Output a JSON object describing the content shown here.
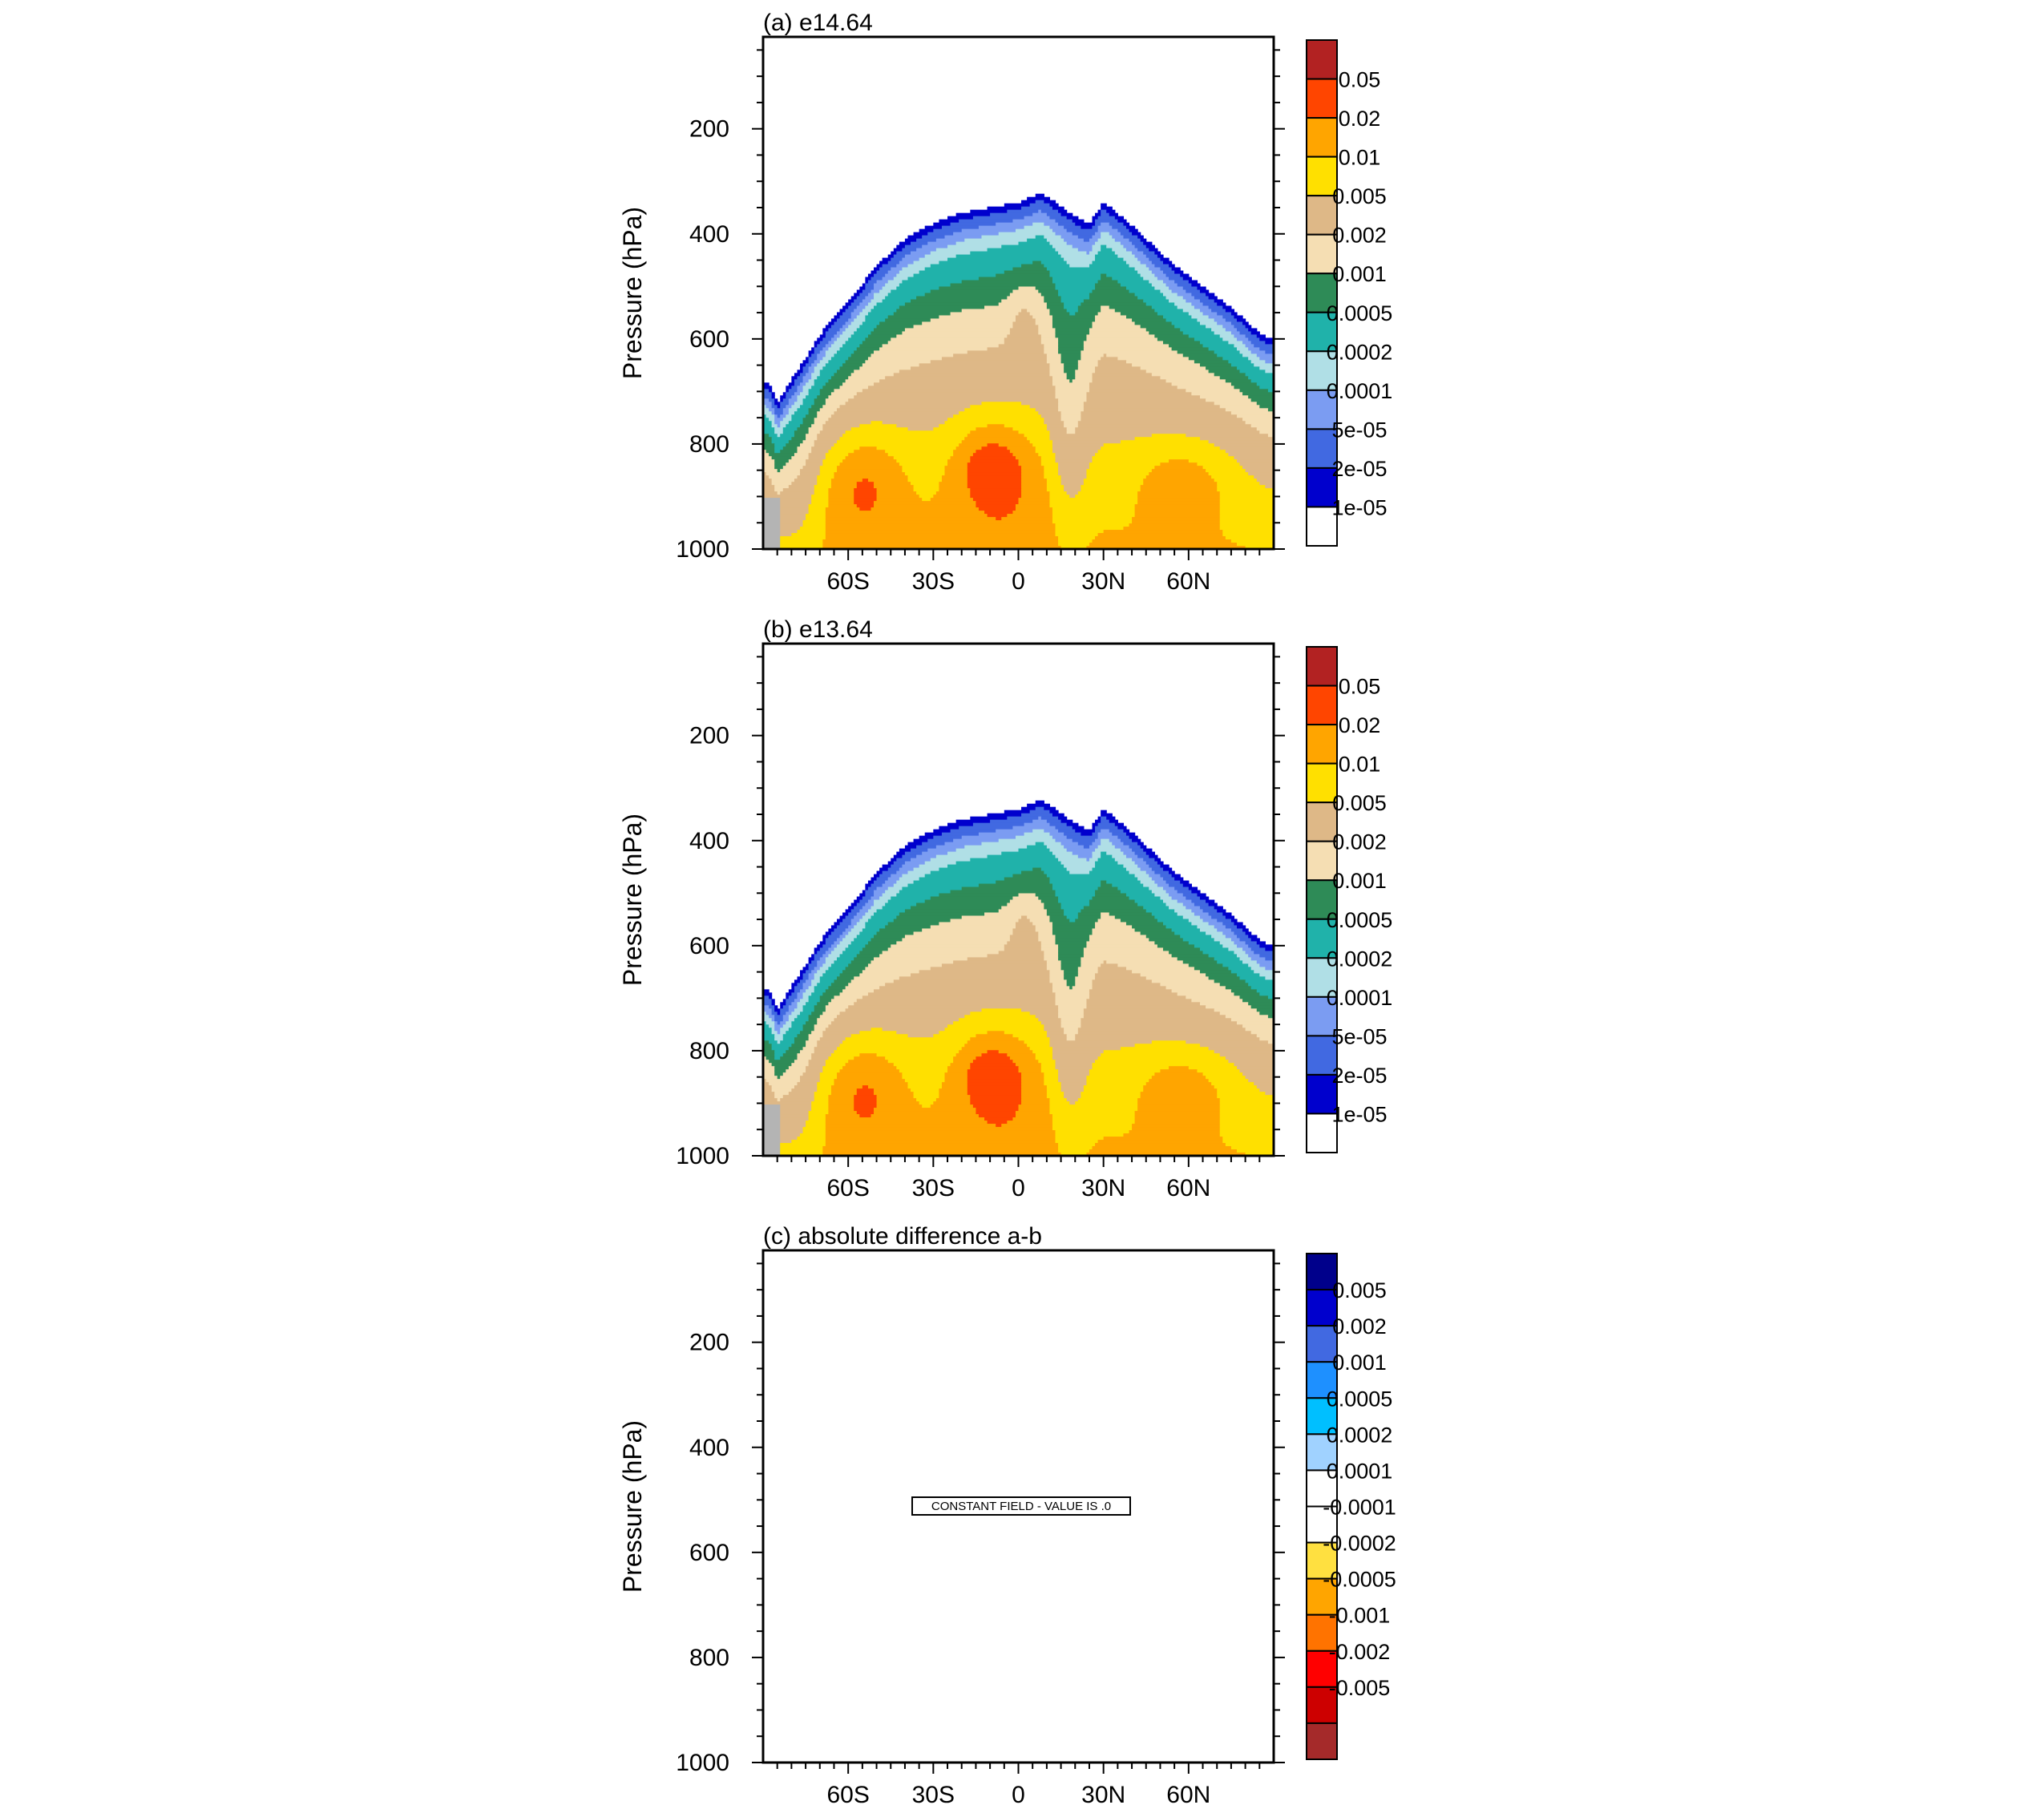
{
  "chart_data": [
    {
      "type": "contour",
      "title": "(a) e14.64",
      "xlabel": "",
      "ylabel": "Pressure (hPa)",
      "x_categories": [
        "60S",
        "30S",
        "0",
        "30N",
        "60N"
      ],
      "x_values": [
        -60,
        -30,
        0,
        30,
        60
      ],
      "xlim": [
        -90,
        90
      ],
      "y_ticks": [
        "200",
        "400",
        "600",
        "800",
        "1000"
      ],
      "y_values": [
        200,
        400,
        600,
        800,
        1000
      ],
      "ylim": [
        1000,
        25
      ],
      "levels": [
        "1e-05",
        "2e-05",
        "5e-05",
        "0.0001",
        "0.0002",
        "0.0005",
        "0.001",
        "0.002",
        "0.005",
        "0.01",
        "0.02",
        "0.05"
      ],
      "colors": [
        "#ffffff",
        "#0000cd",
        "#4169e1",
        "#7b9cf2",
        "#b0dfe6",
        "#20b2aa",
        "#2e8b57",
        "#f5deb3",
        "#deb887",
        "#ffe000",
        "#ffa500",
        "#ff4500",
        "#b22222"
      ],
      "field_top_pressure": [
        [
          -89,
          680
        ],
        [
          -87,
          690
        ],
        [
          -85,
          720
        ],
        [
          -80,
          670
        ],
        [
          -70,
          590
        ],
        [
          -60,
          530
        ],
        [
          -50,
          460
        ],
        [
          -40,
          410
        ],
        [
          -30,
          380
        ],
        [
          -20,
          360
        ],
        [
          -10,
          350
        ],
        [
          0,
          340
        ],
        [
          8,
          322
        ],
        [
          18,
          355
        ],
        [
          25,
          380
        ],
        [
          30,
          340
        ],
        [
          37,
          370
        ],
        [
          45,
          410
        ],
        [
          55,
          460
        ],
        [
          65,
          500
        ],
        [
          75,
          540
        ],
        [
          85,
          590
        ],
        [
          89,
          600
        ]
      ],
      "maxima": [
        {
          "lat": -55,
          "p": 880,
          "approx_value": 0.02
        },
        {
          "lat": -10,
          "p": 840,
          "approx_value": 0.02
        },
        {
          "lat": 58,
          "p": 870,
          "approx_value": 0.02
        }
      ]
    },
    {
      "type": "contour",
      "title": "(b) e13.64",
      "xlabel": "",
      "ylabel": "Pressure (hPa)",
      "x_categories": [
        "60S",
        "30S",
        "0",
        "30N",
        "60N"
      ],
      "x_values": [
        -60,
        -30,
        0,
        30,
        60
      ],
      "xlim": [
        -90,
        90
      ],
      "y_ticks": [
        "200",
        "400",
        "600",
        "800",
        "1000"
      ],
      "y_values": [
        200,
        400,
        600,
        800,
        1000
      ],
      "ylim": [
        1000,
        25
      ],
      "levels": [
        "1e-05",
        "2e-05",
        "5e-05",
        "0.0001",
        "0.0002",
        "0.0005",
        "0.001",
        "0.002",
        "0.005",
        "0.01",
        "0.02",
        "0.05"
      ],
      "colors": [
        "#ffffff",
        "#0000cd",
        "#4169e1",
        "#7b9cf2",
        "#b0dfe6",
        "#20b2aa",
        "#2e8b57",
        "#f5deb3",
        "#deb887",
        "#ffe000",
        "#ffa500",
        "#ff4500",
        "#b22222"
      ],
      "field_top_pressure": [
        [
          -89,
          680
        ],
        [
          -87,
          690
        ],
        [
          -85,
          720
        ],
        [
          -80,
          670
        ],
        [
          -70,
          590
        ],
        [
          -60,
          530
        ],
        [
          -50,
          460
        ],
        [
          -40,
          410
        ],
        [
          -30,
          380
        ],
        [
          -20,
          360
        ],
        [
          -10,
          350
        ],
        [
          0,
          340
        ],
        [
          8,
          322
        ],
        [
          18,
          355
        ],
        [
          25,
          380
        ],
        [
          30,
          340
        ],
        [
          37,
          370
        ],
        [
          45,
          410
        ],
        [
          55,
          460
        ],
        [
          65,
          500
        ],
        [
          75,
          540
        ],
        [
          85,
          590
        ],
        [
          89,
          600
        ]
      ],
      "maxima": [
        {
          "lat": -55,
          "p": 880,
          "approx_value": 0.02
        },
        {
          "lat": -10,
          "p": 840,
          "approx_value": 0.02
        },
        {
          "lat": 58,
          "p": 870,
          "approx_value": 0.02
        }
      ]
    },
    {
      "type": "contour",
      "title": "(c) absolute difference a-b",
      "xlabel": "",
      "ylabel": "Pressure (hPa)",
      "x_categories": [
        "60S",
        "30S",
        "0",
        "30N",
        "60N"
      ],
      "x_values": [
        -60,
        -30,
        0,
        30,
        60
      ],
      "xlim": [
        -90,
        90
      ],
      "y_ticks": [
        "200",
        "400",
        "600",
        "800",
        "1000"
      ],
      "y_values": [
        200,
        400,
        600,
        800,
        1000
      ],
      "ylim": [
        1000,
        25
      ],
      "levels": [
        "0.005",
        "0.002",
        "0.001",
        "0.0005",
        "0.0002",
        "0.0001",
        "-0.0001",
        "-0.0002",
        "-0.0005",
        "-0.001",
        "-0.002",
        "-0.005"
      ],
      "colors": [
        "#a52a2a",
        "#cd0000",
        "#ff0000",
        "#ff7300",
        "#ffa500",
        "#ffe040",
        "#ffffff",
        "#ffffff",
        "#a0d2ff",
        "#00bfff",
        "#1e90ff",
        "#4169e1",
        "#0000cd",
        "#00008b"
      ],
      "annotation": "CONSTANT FIELD - VALUE IS .0",
      "constant_value": 0.0
    }
  ]
}
